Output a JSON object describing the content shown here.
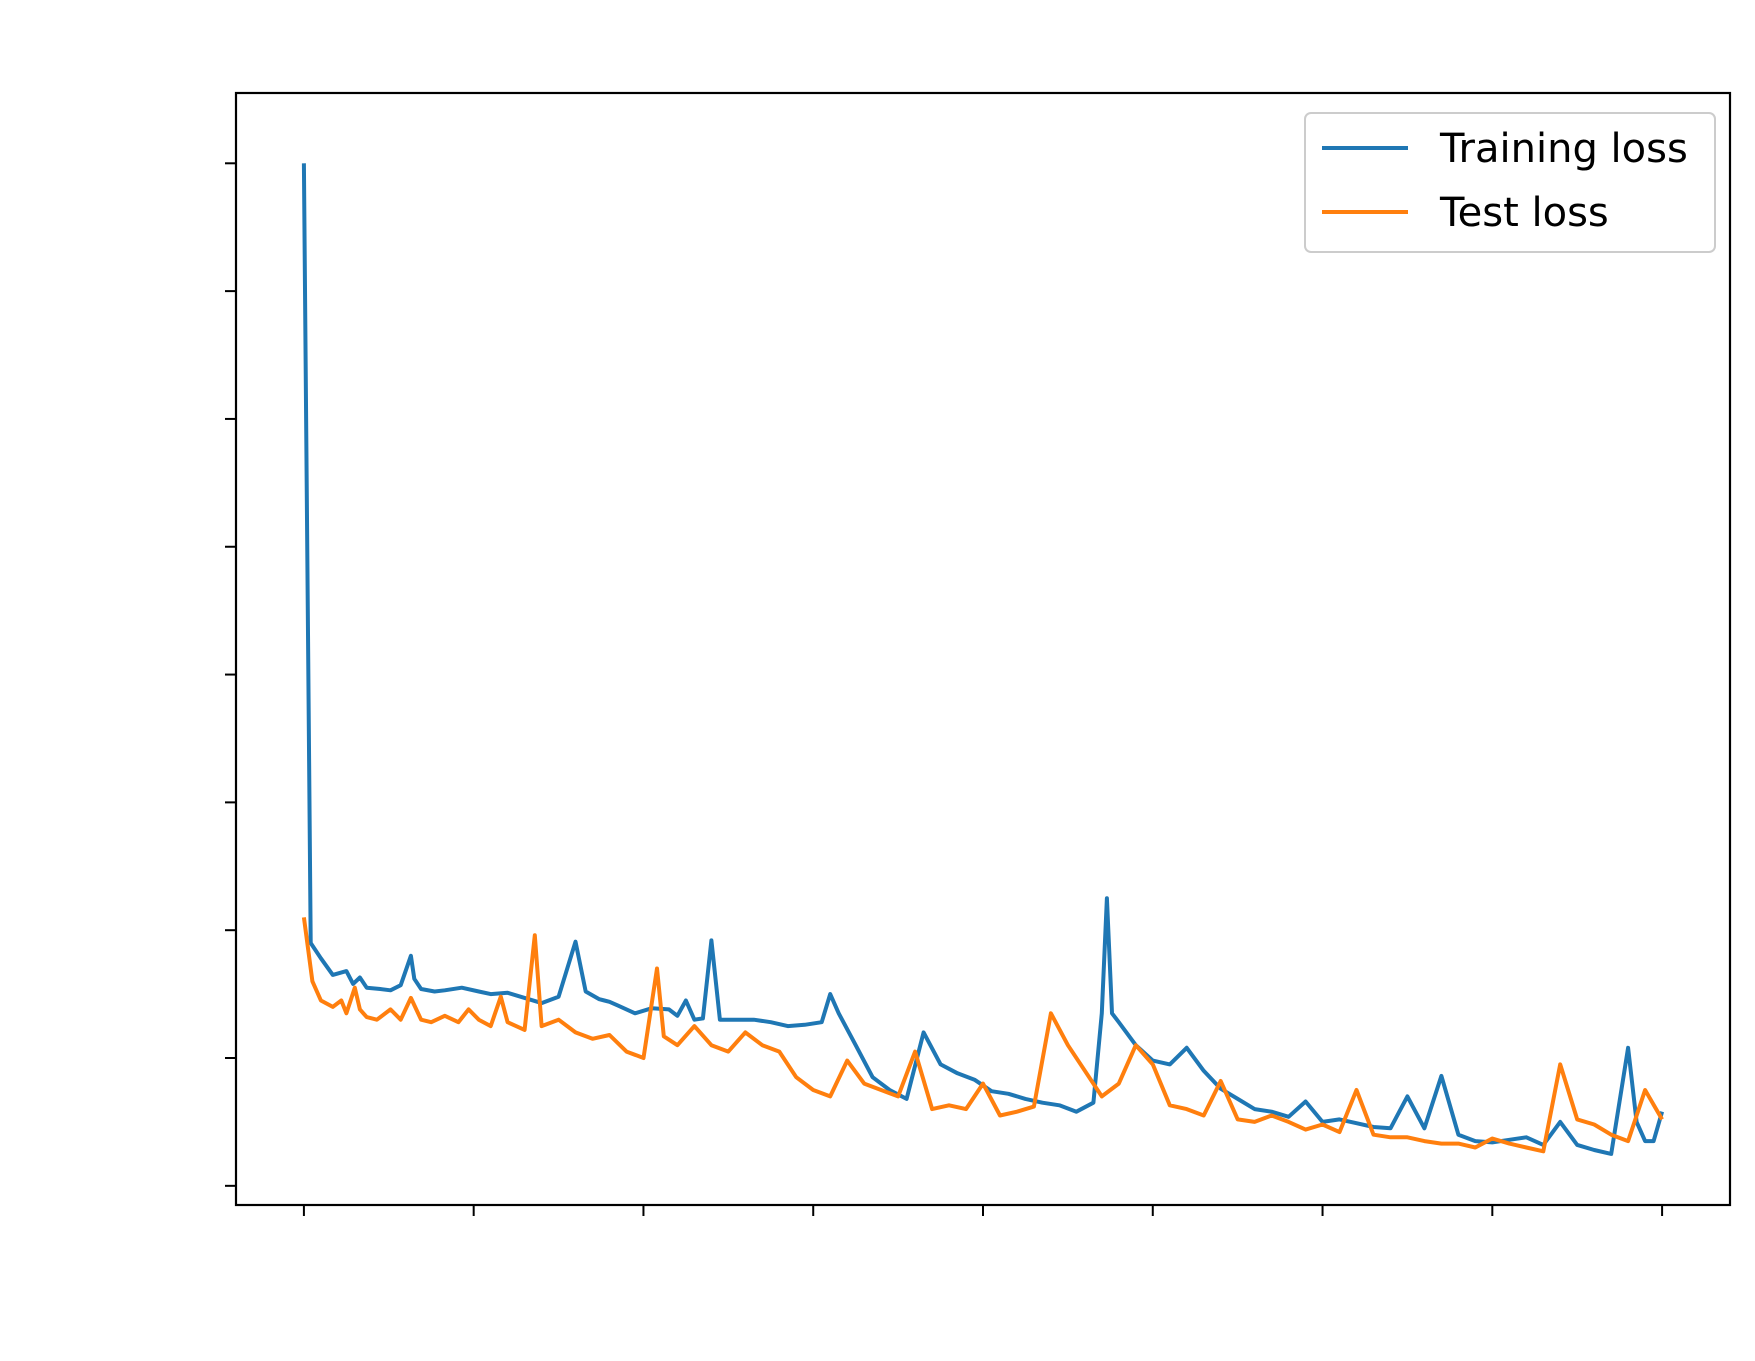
{
  "chart_data": {
    "type": "line",
    "title": "",
    "xlabel": "",
    "ylabel": "",
    "x_ticks_shown": false,
    "y_ticks_shown": false,
    "xlim": [
      -0.4,
      8.4
    ],
    "ylim": [
      -0.15,
      8.55
    ],
    "x_tick_count": 9,
    "y_tick_count": 9,
    "legend_position": "upper-right",
    "grid": false,
    "series": [
      {
        "name": "Training loss",
        "color": "#1f77b4",
        "x": [
          0,
          0.04,
          0.1,
          0.17,
          0.25,
          0.29,
          0.33,
          0.37,
          0.45,
          0.51,
          0.57,
          0.63,
          0.65,
          0.69,
          0.77,
          0.83,
          0.93,
          1.03,
          1.1,
          1.2,
          1.3,
          1.4,
          1.5,
          1.6,
          1.66,
          1.7,
          1.74,
          1.77,
          1.8,
          1.85,
          1.95,
          2.05,
          2.15,
          2.2,
          2.25,
          2.3,
          2.35,
          2.4,
          2.45,
          2.55,
          2.65,
          2.75,
          2.85,
          2.95,
          3.05,
          3.1,
          3.15,
          3.25,
          3.35,
          3.45,
          3.55,
          3.65,
          3.75,
          3.85,
          3.95,
          4.05,
          4.15,
          4.25,
          4.35,
          4.45,
          4.55,
          4.65,
          4.7,
          4.73,
          4.76,
          4.8,
          4.9,
          5.0,
          5.1,
          5.2,
          5.3,
          5.4,
          5.5,
          5.6,
          5.7,
          5.8,
          5.9,
          6.0,
          6.1,
          6.2,
          6.3,
          6.4,
          6.5,
          6.6,
          6.7,
          6.8,
          6.9,
          7.0,
          7.1,
          7.2,
          7.3,
          7.4,
          7.5,
          7.6,
          7.7,
          7.8,
          7.85,
          7.9,
          7.95,
          8.0
        ],
        "y": [
          8.0,
          1.9,
          1.78,
          1.65,
          1.68,
          1.58,
          1.63,
          1.55,
          1.54,
          1.53,
          1.57,
          1.8,
          1.62,
          1.54,
          1.52,
          1.53,
          1.55,
          1.52,
          1.5,
          1.51,
          1.47,
          1.43,
          1.48,
          1.91,
          1.52,
          1.49,
          1.46,
          1.45,
          1.44,
          1.41,
          1.35,
          1.39,
          1.38,
          1.33,
          1.45,
          1.3,
          1.31,
          1.92,
          1.3,
          1.3,
          1.3,
          1.28,
          1.25,
          1.26,
          1.28,
          1.5,
          1.35,
          1.1,
          0.85,
          0.75,
          0.68,
          1.2,
          0.95,
          0.88,
          0.83,
          0.74,
          0.72,
          0.68,
          0.65,
          0.63,
          0.58,
          0.65,
          1.35,
          2.25,
          1.35,
          1.28,
          1.1,
          0.98,
          0.95,
          1.08,
          0.9,
          0.76,
          0.68,
          0.6,
          0.58,
          0.54,
          0.66,
          0.5,
          0.52,
          0.49,
          0.46,
          0.45,
          0.7,
          0.45,
          0.86,
          0.4,
          0.35,
          0.34,
          0.36,
          0.38,
          0.32,
          0.5,
          0.32,
          0.28,
          0.25,
          1.08,
          0.5,
          0.35,
          0.35,
          0.58
        ],
        "values_note": "0"
      },
      {
        "name": "Test loss",
        "color": "#ff7f0e",
        "x": [
          0,
          0.05,
          0.1,
          0.17,
          0.22,
          0.25,
          0.3,
          0.33,
          0.37,
          0.43,
          0.51,
          0.57,
          0.63,
          0.69,
          0.75,
          0.83,
          0.91,
          0.97,
          1.03,
          1.1,
          1.16,
          1.2,
          1.3,
          1.36,
          1.4,
          1.5,
          1.6,
          1.7,
          1.8,
          1.9,
          2.0,
          2.08,
          2.12,
          2.2,
          2.3,
          2.4,
          2.5,
          2.6,
          2.7,
          2.8,
          2.9,
          3.0,
          3.1,
          3.2,
          3.3,
          3.4,
          3.5,
          3.6,
          3.7,
          3.8,
          3.9,
          4.0,
          4.1,
          4.2,
          4.3,
          4.4,
          4.5,
          4.6,
          4.7,
          4.8,
          4.9,
          5.0,
          5.1,
          5.2,
          5.3,
          5.4,
          5.5,
          5.6,
          5.7,
          5.8,
          5.9,
          6.0,
          6.1,
          6.2,
          6.3,
          6.4,
          6.5,
          6.6,
          6.7,
          6.8,
          6.9,
          7.0,
          7.1,
          7.2,
          7.3,
          7.4,
          7.5,
          7.6,
          7.7,
          7.8,
          7.9,
          8.0
        ],
        "y": [
          2.1,
          1.6,
          1.45,
          1.4,
          1.45,
          1.35,
          1.55,
          1.38,
          1.32,
          1.3,
          1.38,
          1.3,
          1.47,
          1.3,
          1.28,
          1.33,
          1.28,
          1.38,
          1.3,
          1.25,
          1.48,
          1.28,
          1.22,
          1.96,
          1.25,
          1.3,
          1.2,
          1.15,
          1.18,
          1.05,
          1.0,
          1.7,
          1.17,
          1.1,
          1.25,
          1.1,
          1.05,
          1.2,
          1.1,
          1.05,
          0.85,
          0.75,
          0.7,
          0.98,
          0.8,
          0.75,
          0.7,
          1.05,
          0.6,
          0.63,
          0.6,
          0.8,
          0.55,
          0.58,
          0.62,
          1.35,
          1.1,
          0.9,
          0.7,
          0.8,
          1.1,
          0.95,
          0.63,
          0.6,
          0.55,
          0.82,
          0.52,
          0.5,
          0.55,
          0.5,
          0.44,
          0.48,
          0.42,
          0.75,
          0.4,
          0.38,
          0.38,
          0.35,
          0.33,
          0.33,
          0.3,
          0.37,
          0.33,
          0.3,
          0.27,
          0.95,
          0.52,
          0.48,
          0.4,
          0.35,
          0.75,
          0.52
        ]
      }
    ]
  }
}
